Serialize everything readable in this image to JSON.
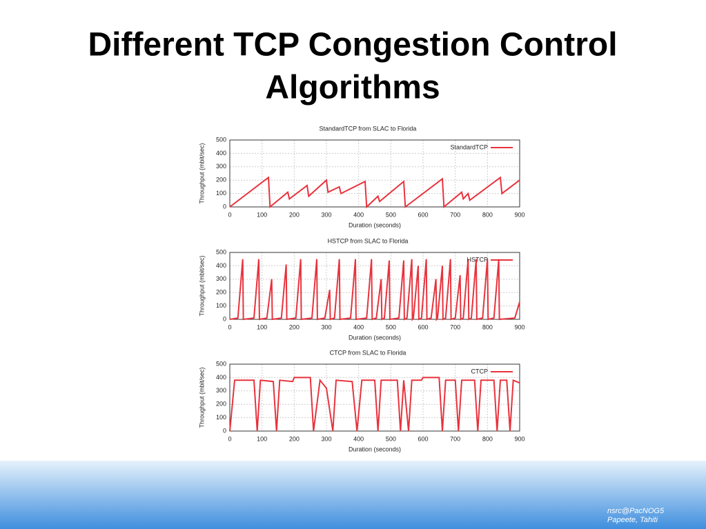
{
  "slide": {
    "title_lines": [
      "Different TCP Congestion Control",
      "Algorithms"
    ],
    "footer": [
      "nsrc@PacNOG5",
      "Papeete, Tahiti"
    ]
  },
  "chart_data": [
    {
      "type": "line",
      "title": "StandardTCP from SLAC to Florida",
      "xlabel": "Duration (seconds)",
      "ylabel": "Throughput (mbit/sec)",
      "x": [
        0,
        120,
        125,
        180,
        185,
        240,
        245,
        300,
        305,
        340,
        345,
        420,
        425,
        460,
        465,
        540,
        545,
        660,
        665,
        720,
        725,
        740,
        745,
        840,
        845,
        900
      ],
      "series": [
        {
          "name": "StandardTCP",
          "color": "#e8323c",
          "values": [
            0,
            220,
            0,
            110,
            60,
            160,
            80,
            200,
            110,
            150,
            100,
            190,
            0,
            80,
            40,
            190,
            0,
            210,
            0,
            110,
            60,
            100,
            50,
            220,
            100,
            200
          ]
        }
      ],
      "xlim": [
        0,
        900
      ],
      "ylim": [
        0,
        500
      ],
      "xticks": [
        0,
        100,
        200,
        300,
        400,
        500,
        600,
        700,
        800,
        900
      ],
      "yticks": [
        0,
        100,
        200,
        300,
        400,
        500
      ],
      "grid": true,
      "legend": "upper right"
    },
    {
      "type": "line",
      "title": "HSTCP from SLAC to Florida",
      "xlabel": "Duration (seconds)",
      "ylabel": "Throughput (mbit/sec)",
      "x": [
        0,
        25,
        40,
        42,
        75,
        90,
        92,
        115,
        130,
        132,
        160,
        175,
        177,
        205,
        220,
        222,
        255,
        270,
        272,
        295,
        310,
        312,
        325,
        340,
        342,
        375,
        390,
        392,
        425,
        440,
        442,
        455,
        470,
        472,
        480,
        495,
        497,
        525,
        540,
        542,
        550,
        565,
        567,
        570,
        585,
        587,
        595,
        610,
        612,
        625,
        640,
        642,
        645,
        660,
        662,
        670,
        685,
        687,
        700,
        715,
        717,
        725,
        740,
        742,
        750,
        765,
        767,
        785,
        800,
        802,
        820,
        835,
        837,
        885,
        900
      ],
      "series": [
        {
          "name": "HSTCP",
          "color": "#e8323c",
          "values": [
            0,
            10,
            450,
            0,
            10,
            450,
            0,
            10,
            300,
            0,
            10,
            410,
            0,
            10,
            450,
            0,
            10,
            450,
            0,
            10,
            220,
            0,
            10,
            450,
            0,
            10,
            450,
            0,
            10,
            450,
            0,
            10,
            300,
            0,
            10,
            440,
            0,
            10,
            440,
            0,
            10,
            450,
            0,
            10,
            400,
            0,
            10,
            450,
            0,
            10,
            300,
            0,
            10,
            400,
            0,
            10,
            450,
            0,
            10,
            330,
            0,
            10,
            450,
            0,
            10,
            450,
            0,
            10,
            450,
            0,
            10,
            450,
            0,
            10,
            130
          ]
        }
      ],
      "xlim": [
        0,
        900
      ],
      "ylim": [
        0,
        500
      ],
      "xticks": [
        0,
        100,
        200,
        300,
        400,
        500,
        600,
        700,
        800,
        900
      ],
      "yticks": [
        0,
        100,
        200,
        300,
        400,
        500
      ],
      "grid": true,
      "legend": "upper right"
    },
    {
      "type": "line",
      "title": "CTCP from SLAC to Florida",
      "xlabel": "Duration (seconds)",
      "ylabel": "Throughput (mbit/sec)",
      "x": [
        0,
        15,
        75,
        85,
        95,
        135,
        145,
        155,
        195,
        200,
        250,
        260,
        280,
        300,
        320,
        330,
        380,
        395,
        410,
        450,
        460,
        470,
        520,
        530,
        540,
        555,
        565,
        595,
        600,
        650,
        660,
        670,
        700,
        710,
        720,
        760,
        770,
        780,
        820,
        830,
        840,
        860,
        870,
        880,
        900
      ],
      "series": [
        {
          "name": "CTCP",
          "color": "#e8323c",
          "values": [
            0,
            380,
            380,
            0,
            380,
            370,
            0,
            380,
            370,
            400,
            400,
            0,
            380,
            320,
            0,
            380,
            370,
            0,
            380,
            380,
            0,
            380,
            380,
            0,
            380,
            0,
            380,
            380,
            400,
            400,
            0,
            380,
            380,
            0,
            380,
            380,
            0,
            380,
            380,
            0,
            380,
            380,
            0,
            380,
            360
          ]
        }
      ],
      "xlim": [
        0,
        900
      ],
      "ylim": [
        0,
        500
      ],
      "xticks": [
        0,
        100,
        200,
        300,
        400,
        500,
        600,
        700,
        800,
        900
      ],
      "yticks": [
        0,
        100,
        200,
        300,
        400,
        500
      ],
      "grid": true,
      "legend": "upper right"
    }
  ]
}
